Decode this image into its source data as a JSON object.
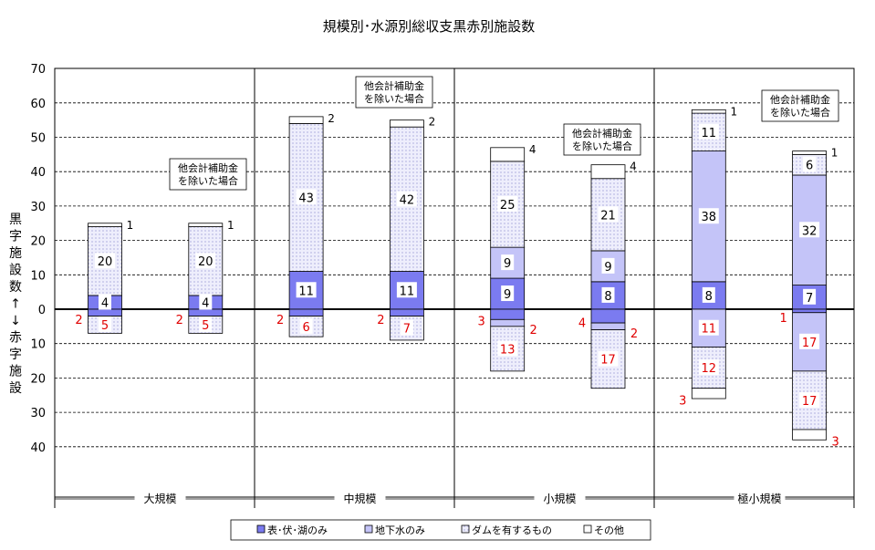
{
  "chart_data": {
    "type": "bar",
    "title": "規模別･水源別総収支黒赤別施設数",
    "ylabel_chars": [
      "黒",
      "字",
      "施",
      "設",
      "数",
      "↑",
      "↓",
      "赤",
      "字",
      "施",
      "設"
    ],
    "ylim": [
      -40,
      70
    ],
    "yticks": [
      {
        "v": 70,
        "label": "70"
      },
      {
        "v": 60,
        "label": "60"
      },
      {
        "v": 50,
        "label": "50"
      },
      {
        "v": 40,
        "label": "40"
      },
      {
        "v": 30,
        "label": "30"
      },
      {
        "v": 20,
        "label": "20"
      },
      {
        "v": 10,
        "label": "10"
      },
      {
        "v": 0,
        "label": "0"
      },
      {
        "v": -10,
        "label": "10"
      },
      {
        "v": -20,
        "label": "20"
      },
      {
        "v": -30,
        "label": "30"
      },
      {
        "v": -40,
        "label": "40"
      }
    ],
    "grid": true,
    "legend_position": "bottom",
    "groups": [
      "大規模",
      "中規模",
      "小規模",
      "極小規模"
    ],
    "legend": [
      {
        "key": "surface",
        "label": "表･伏･湖のみ"
      },
      {
        "key": "ground",
        "label": "地下水のみ"
      },
      {
        "key": "dam",
        "label": "ダムを有するもの"
      },
      {
        "key": "other",
        "label": "その他"
      }
    ],
    "annotation": "他会計補助金\nを除いた場合",
    "columns": [
      {
        "group": "大規模",
        "annotated": false,
        "black": {
          "surface": 4,
          "ground": 0,
          "dam": 20,
          "other": 1
        },
        "red": {
          "surface": 2,
          "ground": 0,
          "dam": 5,
          "other": 0
        },
        "red_label_order": [
          "5"
        ]
      },
      {
        "group": "大規模",
        "annotated": true,
        "black": {
          "surface": 4,
          "ground": 0,
          "dam": 20,
          "other": 1
        },
        "red": {
          "surface": 2,
          "ground": 0,
          "dam": 5,
          "other": 0
        },
        "red_label_order": [
          "5"
        ]
      },
      {
        "group": "中規模",
        "annotated": false,
        "black": {
          "surface": 11,
          "ground": 0,
          "dam": 43,
          "other": 2
        },
        "red": {
          "surface": 2,
          "ground": 0,
          "dam": 6,
          "other": 0
        },
        "red_label_order": [
          "2",
          "6"
        ]
      },
      {
        "group": "中規模",
        "annotated": true,
        "black": {
          "surface": 11,
          "ground": 0,
          "dam": 42,
          "other": 2
        },
        "red": {
          "surface": 2,
          "ground": 0,
          "dam": 7,
          "other": 0
        },
        "red_label_order": [
          "2",
          "7"
        ]
      },
      {
        "group": "小規模",
        "annotated": false,
        "black": {
          "surface": 9,
          "ground": 9,
          "dam": 25,
          "other": 4
        },
        "red": {
          "surface": 3,
          "ground": 2,
          "dam": 13,
          "other": 0
        },
        "red_label_order": [
          "3",
          "2",
          "13"
        ]
      },
      {
        "group": "小規模",
        "annotated": true,
        "black": {
          "surface": 8,
          "ground": 9,
          "dam": 21,
          "other": 4
        },
        "red": {
          "surface": 4,
          "ground": 2,
          "dam": 17,
          "other": 0
        },
        "red_label_order": [
          "4",
          "2",
          "17"
        ]
      },
      {
        "group": "極小規模",
        "annotated": false,
        "black": {
          "surface": 8,
          "ground": 38,
          "dam": 11,
          "other": 1
        },
        "red": {
          "surface": 0,
          "ground": 11,
          "dam": 12,
          "other": 3
        },
        "red_label_order": [
          "11",
          "12",
          "3"
        ]
      },
      {
        "group": "極小規模",
        "annotated": true,
        "black": {
          "surface": 7,
          "ground": 32,
          "dam": 6,
          "other": 1
        },
        "red": {
          "surface": 1,
          "ground": 17,
          "dam": 17,
          "other": 3
        },
        "red_label_order": [
          "1",
          "17",
          "17",
          "3"
        ]
      }
    ],
    "colors": {
      "surface": "#7b7bf0",
      "ground": "#c4c4f8",
      "dam_bg": "#eeeefc",
      "dam_dot": "#8888cc",
      "other": "#ffffff",
      "red_text": "#e00000",
      "black_text": "#000000"
    }
  }
}
